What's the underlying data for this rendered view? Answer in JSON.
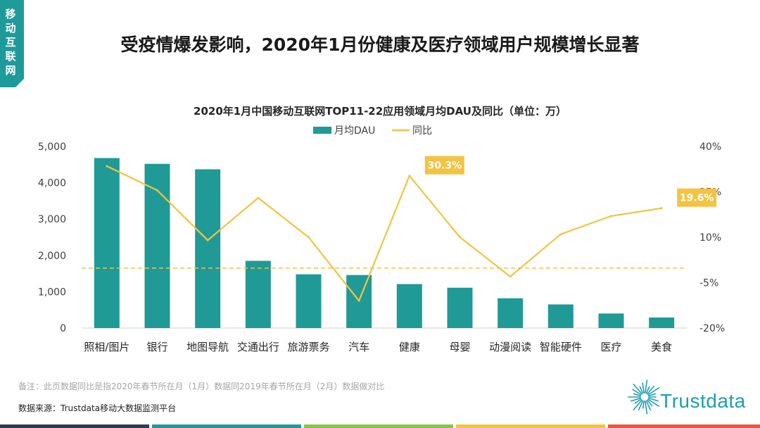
{
  "side_tab": {
    "text": "移动互联网",
    "color": "#1f9a9a"
  },
  "title": "受疫情爆发影响，2020年1月份健康及医疗领域用户规模增长显著",
  "chart_data": {
    "type": "bar",
    "title": "2020年1月中国移动互联网TOP11-22应用领域月均DAU及同比（单位：万）",
    "categories": [
      "照相/图片",
      "银行",
      "地图导航",
      "交通出行",
      "旅游票务",
      "汽车",
      "健康",
      "母婴",
      "动漫阅读",
      "智能硬件",
      "医疗",
      "美食"
    ],
    "series": [
      {
        "name": "月均DAU",
        "type": "bar",
        "axis": "left",
        "color": "#1f9a96",
        "values": [
          4680,
          4520,
          4370,
          1850,
          1480,
          1460,
          1210,
          1110,
          820,
          650,
          400,
          290
        ]
      },
      {
        "name": "同比",
        "type": "line",
        "axis": "right",
        "color": "#f5c242",
        "values": [
          33.5,
          25.5,
          9.0,
          23.0,
          10.0,
          -11.0,
          30.3,
          10.0,
          -3.0,
          11.0,
          17.0,
          19.6
        ]
      }
    ],
    "left_axis": {
      "min": 0,
      "max": 5000,
      "ticks": [
        "0",
        "1,000",
        "2,000",
        "3,000",
        "4,000",
        "5,000"
      ]
    },
    "right_axis": {
      "min": -20,
      "max": 40,
      "ticks": [
        "-20%",
        "-5%",
        "10%",
        "25%",
        "40%"
      ]
    },
    "callouts": [
      {
        "index": 6,
        "label": "30.3%"
      },
      {
        "index": 11,
        "label": "19.6%"
      }
    ],
    "reference_line": {
      "value": 1650,
      "style": "dashed",
      "color": "#f5c242"
    },
    "legend": "top-center",
    "callout_color": "#f5c242"
  },
  "footnote": "备注：此页数据同比是指2020年春节所在月（1月）数据同2019年春节所在月（2月）数据做对比",
  "source": "数据来源：Trustdata移动大数据监测平台",
  "logo_text": "Trustdata",
  "bottom_bar_colors": [
    "#2c3e50",
    "#1f9a96",
    "#8bc34a",
    "#f5c242",
    "#e9573f"
  ]
}
